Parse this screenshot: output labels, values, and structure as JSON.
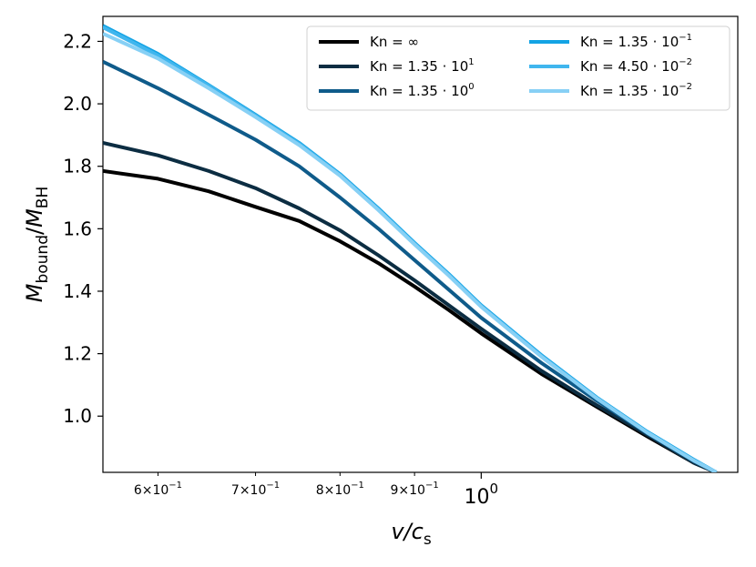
{
  "chart_data": {
    "type": "line",
    "xscale": "log",
    "xlim": [
      0.55,
      1.5
    ],
    "ylim": [
      0.82,
      2.28
    ],
    "xlabel": {
      "main": "v/c",
      "sub": "s"
    },
    "ylabel": {
      "main": "M",
      "sub": "bound",
      "slash": "/",
      "main2": "M",
      "sub2": "BH"
    },
    "yticks": [
      {
        "v": 1.0,
        "label": "1.0"
      },
      {
        "v": 1.2,
        "label": "1.2"
      },
      {
        "v": 1.4,
        "label": "1.4"
      },
      {
        "v": 1.6,
        "label": "1.6"
      },
      {
        "v": 1.8,
        "label": "1.8"
      },
      {
        "v": 2.0,
        "label": "2.0"
      },
      {
        "v": 2.2,
        "label": "2.2"
      }
    ],
    "xticks_major": [
      {
        "v": 1.0,
        "base": "10",
        "exp": "0"
      }
    ],
    "xticks_minor": [
      {
        "v": 0.6,
        "mant": "6",
        "base": "10",
        "exp": "−1"
      },
      {
        "v": 0.7,
        "mant": "7",
        "base": "10",
        "exp": "−1"
      },
      {
        "v": 0.8,
        "mant": "8",
        "base": "10",
        "exp": "−1"
      },
      {
        "v": 0.9,
        "mant": "9",
        "base": "10",
        "exp": "−1"
      }
    ],
    "legend_position": "top-right",
    "legend_columns": 2,
    "series": [
      {
        "name": "Kn = ∞",
        "color": "#000000",
        "points": [
          [
            0.55,
            1.785
          ],
          [
            0.6,
            1.76
          ],
          [
            0.65,
            1.72
          ],
          [
            0.7,
            1.67
          ],
          [
            0.75,
            1.625
          ],
          [
            0.8,
            1.56
          ],
          [
            0.85,
            1.49
          ],
          [
            0.9,
            1.415
          ],
          [
            0.95,
            1.34
          ],
          [
            1.0,
            1.265
          ],
          [
            1.1,
            1.135
          ],
          [
            1.2,
            1.03
          ],
          [
            1.3,
            0.935
          ],
          [
            1.4,
            0.85
          ],
          [
            1.45,
            0.82
          ]
        ]
      },
      {
        "name": "Kn = 1.35 · 10",
        "exp": "1",
        "color": "#0c2d42",
        "points": [
          [
            0.55,
            1.875
          ],
          [
            0.6,
            1.835
          ],
          [
            0.65,
            1.785
          ],
          [
            0.7,
            1.73
          ],
          [
            0.75,
            1.665
          ],
          [
            0.8,
            1.595
          ],
          [
            0.85,
            1.515
          ],
          [
            0.9,
            1.435
          ],
          [
            0.95,
            1.355
          ],
          [
            1.0,
            1.28
          ],
          [
            1.1,
            1.145
          ],
          [
            1.2,
            1.035
          ],
          [
            1.3,
            0.94
          ],
          [
            1.4,
            0.85
          ],
          [
            1.45,
            0.82
          ]
        ]
      },
      {
        "name": "Kn = 1.35 · 10",
        "exp": "0",
        "color": "#0f5b8a",
        "points": [
          [
            0.55,
            2.135
          ],
          [
            0.6,
            2.05
          ],
          [
            0.65,
            1.965
          ],
          [
            0.7,
            1.885
          ],
          [
            0.75,
            1.8
          ],
          [
            0.8,
            1.7
          ],
          [
            0.85,
            1.6
          ],
          [
            0.9,
            1.5
          ],
          [
            0.95,
            1.405
          ],
          [
            1.0,
            1.315
          ],
          [
            1.1,
            1.17
          ],
          [
            1.2,
            1.05
          ],
          [
            1.3,
            0.945
          ],
          [
            1.4,
            0.855
          ],
          [
            1.45,
            0.82
          ]
        ]
      },
      {
        "name": "Kn = 1.35 · 10",
        "exp": "−1",
        "color": "#13a3e4",
        "points": [
          [
            0.55,
            2.25
          ],
          [
            0.6,
            2.16
          ],
          [
            0.65,
            2.06
          ],
          [
            0.7,
            1.965
          ],
          [
            0.75,
            1.875
          ],
          [
            0.8,
            1.775
          ],
          [
            0.85,
            1.665
          ],
          [
            0.9,
            1.555
          ],
          [
            0.95,
            1.455
          ],
          [
            1.0,
            1.355
          ],
          [
            1.1,
            1.195
          ],
          [
            1.2,
            1.06
          ],
          [
            1.3,
            0.95
          ],
          [
            1.4,
            0.86
          ],
          [
            1.45,
            0.82
          ]
        ]
      },
      {
        "name": "Kn = 4.50 · 10",
        "exp": "−2",
        "color": "#40b6ee",
        "points": [
          [
            0.55,
            2.245
          ],
          [
            0.6,
            2.155
          ],
          [
            0.65,
            2.058
          ],
          [
            0.7,
            1.962
          ],
          [
            0.75,
            1.872
          ],
          [
            0.8,
            1.772
          ],
          [
            0.85,
            1.662
          ],
          [
            0.9,
            1.552
          ],
          [
            0.95,
            1.452
          ],
          [
            1.0,
            1.352
          ],
          [
            1.1,
            1.192
          ],
          [
            1.2,
            1.058
          ],
          [
            1.3,
            0.948
          ],
          [
            1.4,
            0.858
          ],
          [
            1.45,
            0.82
          ]
        ]
      },
      {
        "name": "Kn = 1.35 · 10",
        "exp": "−2",
        "color": "#87d0f5",
        "points": [
          [
            0.55,
            2.225
          ],
          [
            0.6,
            2.145
          ],
          [
            0.65,
            2.05
          ],
          [
            0.7,
            1.958
          ],
          [
            0.75,
            1.868
          ],
          [
            0.8,
            1.77
          ],
          [
            0.85,
            1.66
          ],
          [
            0.9,
            1.55
          ],
          [
            0.95,
            1.45
          ],
          [
            1.0,
            1.35
          ],
          [
            1.1,
            1.19
          ],
          [
            1.2,
            1.057
          ],
          [
            1.3,
            0.947
          ],
          [
            1.4,
            0.857
          ],
          [
            1.45,
            0.82
          ]
        ]
      }
    ]
  }
}
